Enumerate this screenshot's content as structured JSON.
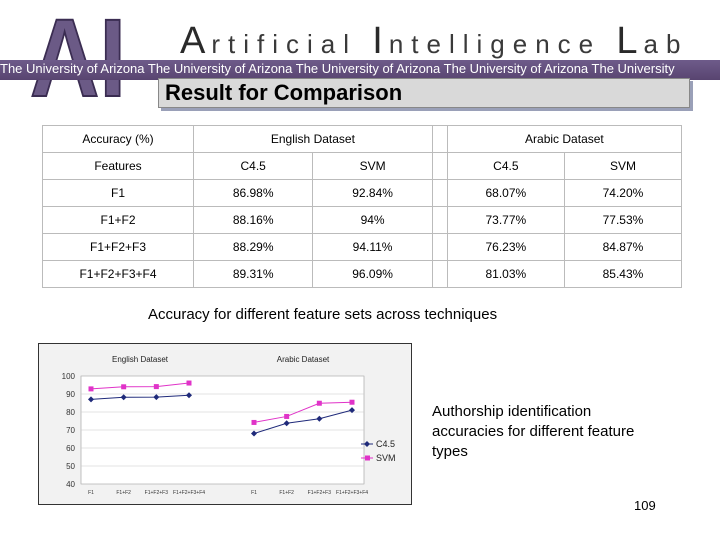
{
  "header": {
    "logo_text": "AI",
    "lab_name_parts": [
      {
        "cap": "A",
        "rest": "rtificial "
      },
      {
        "cap": "I",
        "rest": "ntelligence "
      },
      {
        "cap": "L",
        "rest": "ab"
      }
    ],
    "ribbon_text": "The University of Arizona  The University of Arizona  The University of Arizona  The University of Arizona  The University"
  },
  "slide_title": "Result for Comparison",
  "table": {
    "corner": "Accuracy (%)",
    "group_headers": [
      "English Dataset",
      "Arabic Dataset"
    ],
    "features_label": "Features",
    "sub_headers": [
      "C4.5",
      "SVM",
      "C4.5",
      "SVM"
    ],
    "rows": [
      {
        "feature": "F1",
        "values": [
          "86.98%",
          "92.84%",
          "68.07%",
          "74.20%"
        ]
      },
      {
        "feature": "F1+F2",
        "values": [
          "88.16%",
          "94%",
          "73.77%",
          "77.53%"
        ]
      },
      {
        "feature": "F1+F2+F3",
        "values": [
          "88.29%",
          "94.11%",
          "76.23%",
          "84.87%"
        ]
      },
      {
        "feature": "F1+F2+F3+F4",
        "values": [
          "89.31%",
          "96.09%",
          "81.03%",
          "85.43%"
        ]
      }
    ]
  },
  "caption": "Accuracy for different feature sets across techniques",
  "chart_data": {
    "type": "line",
    "group_labels": [
      "English Dataset",
      "Arabic Dataset"
    ],
    "categories": [
      "F1",
      "F1+F2",
      "F1+F2+F3",
      "F1+F2+F3+F4"
    ],
    "y_ticks": [
      "100",
      "90",
      "80",
      "70",
      "60",
      "50",
      "40"
    ],
    "ylim": [
      40,
      100
    ],
    "series": [
      {
        "name": "C4.5",
        "color": "#1f2a7a",
        "marker": "diamond",
        "english": [
          86.98,
          88.16,
          88.29,
          89.31
        ],
        "arabic": [
          68.07,
          73.77,
          76.23,
          81.03
        ]
      },
      {
        "name": "SVM",
        "color": "#e033c8",
        "marker": "square",
        "english": [
          92.84,
          94,
          94.11,
          96.09
        ],
        "arabic": [
          74.2,
          77.53,
          84.87,
          85.43
        ]
      }
    ],
    "grid": true,
    "legend": "right"
  },
  "side_note": "Authorship identification accuracies for different feature types",
  "page_number": "109"
}
